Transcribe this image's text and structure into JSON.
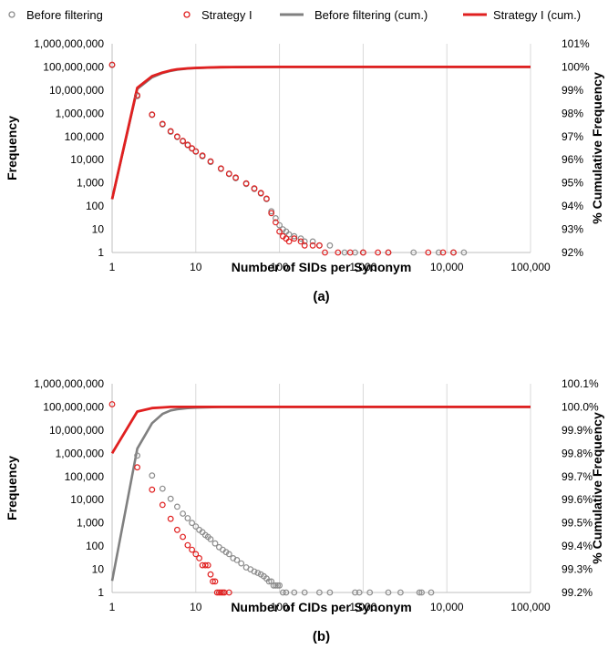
{
  "colors": {
    "before": "#8c8c8c",
    "before_line": "#808080",
    "strategy": "#e02020",
    "grid": "#d9d9d9"
  },
  "legend": {
    "before_points": "Before filtering",
    "strategy_points": "Strategy I",
    "before_cum": "Before filtering (cum.)",
    "strategy_cum": "Strategy I (cum.)"
  },
  "chart_data": [
    {
      "type": "scatter",
      "panel_label": "(a)",
      "xlabel": "Number of SIDs per Synonym",
      "ylabel": "Frequency",
      "y2label": "% Cumulative Frequency",
      "xscale": "log",
      "yscale": "log",
      "xlim": [
        1,
        100000
      ],
      "ylim": [
        1,
        1000000000
      ],
      "y2lim": [
        92,
        101
      ],
      "x_ticks": [
        "1",
        "10",
        "100",
        "1,000",
        "10,000",
        "100,000"
      ],
      "y_ticks": [
        "1",
        "10",
        "100",
        "1,000",
        "10,000",
        "100,000",
        "1,000,000",
        "10,000,000",
        "100,000,000",
        "1,000,000,000"
      ],
      "y2_ticks": [
        "92%",
        "93%",
        "94%",
        "95%",
        "96%",
        "97%",
        "98%",
        "99%",
        "100%",
        "101%"
      ],
      "grid": "vertical",
      "legend_position": "top",
      "series": [
        {
          "name": "Before filtering",
          "kind": "points",
          "x": [
            1,
            2,
            3,
            4,
            5,
            6,
            7,
            8,
            9,
            10,
            12,
            15,
            20,
            25,
            30,
            40,
            50,
            60,
            70,
            80,
            90,
            100,
            110,
            120,
            130,
            150,
            180,
            200,
            250,
            300,
            400,
            600,
            800,
            1000,
            2000,
            4000,
            8000,
            12000,
            16000
          ],
          "y": [
            120000000,
            5500000,
            850000,
            330000,
            160000,
            95000,
            62000,
            42000,
            30000,
            22000,
            14000,
            8000,
            4000,
            2400,
            1600,
            900,
            550,
            350,
            200,
            60,
            30,
            15,
            10,
            8,
            6,
            5,
            4,
            3,
            3,
            2,
            2,
            1,
            1,
            1,
            1,
            1,
            1,
            1,
            1
          ]
        },
        {
          "name": "Strategy I",
          "kind": "points",
          "x": [
            1,
            2,
            3,
            4,
            5,
            6,
            7,
            8,
            9,
            10,
            12,
            15,
            20,
            25,
            30,
            40,
            50,
            60,
            70,
            80,
            90,
            100,
            110,
            120,
            130,
            150,
            180,
            200,
            250,
            300,
            350,
            500,
            700,
            1000,
            1500,
            2000,
            6000,
            9000,
            12000
          ],
          "y": [
            125000000,
            6000000,
            880000,
            350000,
            170000,
            100000,
            65000,
            44000,
            31000,
            23000,
            15000,
            8500,
            4200,
            2500,
            1700,
            950,
            580,
            370,
            210,
            50,
            20,
            8,
            5,
            4,
            3,
            4,
            3,
            2,
            2,
            2,
            1,
            1,
            1,
            1,
            1,
            1,
            1,
            1,
            1
          ]
        },
        {
          "name": "Before filtering (cum.)",
          "kind": "cumulative",
          "axis": "y2",
          "x": [
            1,
            2,
            3,
            4,
            5,
            6,
            8,
            10,
            15,
            20,
            30,
            50,
            100,
            100000
          ],
          "y": [
            94.3,
            99.05,
            99.55,
            99.74,
            99.83,
            99.88,
            99.93,
            99.95,
            99.975,
            99.987,
            99.994,
            99.998,
            100,
            100
          ]
        },
        {
          "name": "Strategy I (cum.)",
          "kind": "cumulative",
          "axis": "y2",
          "x": [
            1,
            2,
            3,
            4,
            5,
            6,
            8,
            10,
            15,
            20,
            30,
            50,
            100,
            100000
          ],
          "y": [
            94.3,
            99.1,
            99.6,
            99.76,
            99.85,
            99.9,
            99.94,
            99.96,
            99.98,
            99.99,
            99.995,
            99.998,
            100,
            100
          ]
        }
      ]
    },
    {
      "type": "scatter",
      "panel_label": "(b)",
      "xlabel": "Number of CIDs per Synonym",
      "ylabel": "Frequency",
      "y2label": "% Cumulative Frequency",
      "xscale": "log",
      "yscale": "log",
      "xlim": [
        1,
        100000
      ],
      "ylim": [
        1,
        1000000000
      ],
      "y2lim": [
        99.2,
        100.1
      ],
      "x_ticks": [
        "1",
        "10",
        "100",
        "1,000",
        "10,000",
        "100,000"
      ],
      "y_ticks": [
        "1",
        "10",
        "100",
        "1,000",
        "10,000",
        "100,000",
        "1,000,000",
        "10,000,000",
        "100,000,000",
        "1,000,000,000"
      ],
      "y2_ticks": [
        "99.2%",
        "99.3%",
        "99.4%",
        "99.5%",
        "99.6%",
        "99.7%",
        "99.8%",
        "99.9%",
        "100.0%",
        "100.1%"
      ],
      "grid": "vertical",
      "legend_position": "top",
      "series": [
        {
          "name": "Before filtering",
          "kind": "points",
          "x": [
            2,
            3,
            4,
            5,
            6,
            7,
            8,
            9,
            10,
            11,
            12,
            13,
            14,
            15,
            17,
            19,
            21,
            23,
            25,
            28,
            31,
            35,
            40,
            45,
            50,
            55,
            60,
            65,
            70,
            75,
            80,
            85,
            90,
            95,
            100,
            110,
            120,
            150,
            200,
            300,
            400,
            800,
            900,
            1200,
            2000,
            2800,
            4700,
            5000,
            6500
          ],
          "y": [
            800000,
            110000,
            30000,
            11000,
            5000,
            2500,
            1600,
            1000,
            700,
            500,
            400,
            300,
            250,
            200,
            130,
            90,
            70,
            55,
            45,
            30,
            25,
            18,
            12,
            10,
            8,
            7,
            6,
            5,
            4,
            3,
            3,
            2,
            2,
            2,
            2,
            1,
            1,
            1,
            1,
            1,
            1,
            1,
            1,
            1,
            1,
            1,
            1,
            1,
            1
          ]
        },
        {
          "name": "Strategy I",
          "kind": "points",
          "x": [
            1,
            2,
            3,
            4,
            5,
            6,
            7,
            8,
            9,
            10,
            11,
            12,
            13,
            14,
            15,
            16,
            17,
            18,
            19,
            20,
            21,
            22,
            25
          ],
          "y": [
            130000000,
            250000,
            27000,
            6000,
            1500,
            500,
            250,
            110,
            70,
            45,
            30,
            15,
            15,
            15,
            6,
            3,
            3,
            1,
            1,
            1,
            1,
            1,
            1
          ]
        },
        {
          "name": "Before filtering (cum.)",
          "kind": "cumulative",
          "axis": "y2",
          "x": [
            1,
            2,
            3,
            4,
            5,
            6,
            8,
            10,
            20,
            100000
          ],
          "y": [
            99.25,
            99.82,
            99.93,
            99.97,
            99.985,
            99.99,
            99.995,
            99.997,
            100,
            100
          ]
        },
        {
          "name": "Strategy I (cum.)",
          "kind": "cumulative",
          "axis": "y2",
          "x": [
            1,
            2,
            3,
            4,
            5,
            10,
            100000
          ],
          "y": [
            99.8,
            99.98,
            99.995,
            99.998,
            100,
            100,
            100
          ]
        }
      ]
    }
  ]
}
